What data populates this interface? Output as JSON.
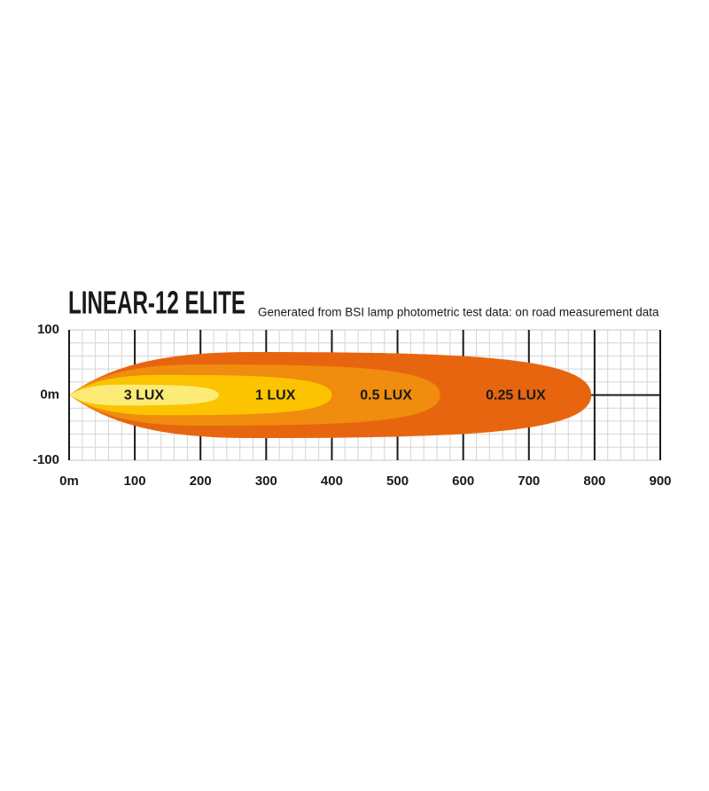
{
  "chart_data": {
    "type": "beam",
    "title": "LINEAR-12 ELITE",
    "subtitle": "Generated from BSI lamp photometric test data: on road measurement data",
    "series": [
      {
        "name": "3 LUX",
        "color": "#fdeb78",
        "reach": 228,
        "half_width": 16
      },
      {
        "name": "1 LUX",
        "color": "#fcc300",
        "reach": 400,
        "half_width": 31
      },
      {
        "name": "0.5 LUX",
        "color": "#f08c0e",
        "reach": 565,
        "half_width": 47
      },
      {
        "name": "0.25 LUX",
        "color": "#e8650f",
        "reach": 795,
        "half_width": 66
      }
    ],
    "xlim": [
      0,
      900
    ],
    "xticks": [
      {
        "value": 0,
        "label": "0m"
      },
      100,
      200,
      300,
      400,
      500,
      600,
      700,
      800,
      900
    ],
    "ylim": [
      -100,
      100
    ],
    "yticks": [
      100,
      {
        "value": 0,
        "label": "0m"
      },
      -100
    ],
    "grid": true
  }
}
